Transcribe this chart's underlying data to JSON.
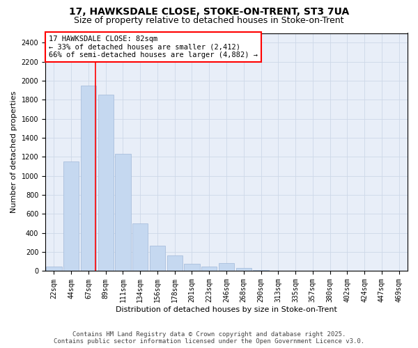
{
  "title_line1": "17, HAWKSDALE CLOSE, STOKE-ON-TRENT, ST3 7UA",
  "title_line2": "Size of property relative to detached houses in Stoke-on-Trent",
  "xlabel": "Distribution of detached houses by size in Stoke-on-Trent",
  "ylabel": "Number of detached properties",
  "categories": [
    "22sqm",
    "44sqm",
    "67sqm",
    "89sqm",
    "111sqm",
    "134sqm",
    "156sqm",
    "178sqm",
    "201sqm",
    "223sqm",
    "246sqm",
    "268sqm",
    "290sqm",
    "313sqm",
    "335sqm",
    "357sqm",
    "380sqm",
    "402sqm",
    "424sqm",
    "447sqm",
    "469sqm"
  ],
  "values": [
    50,
    1150,
    1950,
    1850,
    1230,
    500,
    270,
    165,
    75,
    45,
    85,
    30,
    10,
    5,
    5,
    2,
    2,
    1,
    1,
    0,
    0
  ],
  "bar_color": "#c5d8f0",
  "bar_edge_color": "#a0b8d8",
  "vline_pos": 2.425,
  "vline_color": "red",
  "annotation_text": "17 HAWKSDALE CLOSE: 82sqm\n← 33% of detached houses are smaller (2,412)\n66% of semi-detached houses are larger (4,882) →",
  "annotation_box_color": "white",
  "annotation_box_edge": "red",
  "ylim": [
    0,
    2500
  ],
  "yticks": [
    0,
    200,
    400,
    600,
    800,
    1000,
    1200,
    1400,
    1600,
    1800,
    2000,
    2200,
    2400
  ],
  "grid_color": "#cdd8e8",
  "background_color": "#e8eef8",
  "footer_line1": "Contains HM Land Registry data © Crown copyright and database right 2025.",
  "footer_line2": "Contains public sector information licensed under the Open Government Licence v3.0.",
  "title_fontsize": 10,
  "subtitle_fontsize": 9,
  "axis_label_fontsize": 8,
  "tick_fontsize": 7,
  "annotation_fontsize": 7.5,
  "footer_fontsize": 6.5
}
